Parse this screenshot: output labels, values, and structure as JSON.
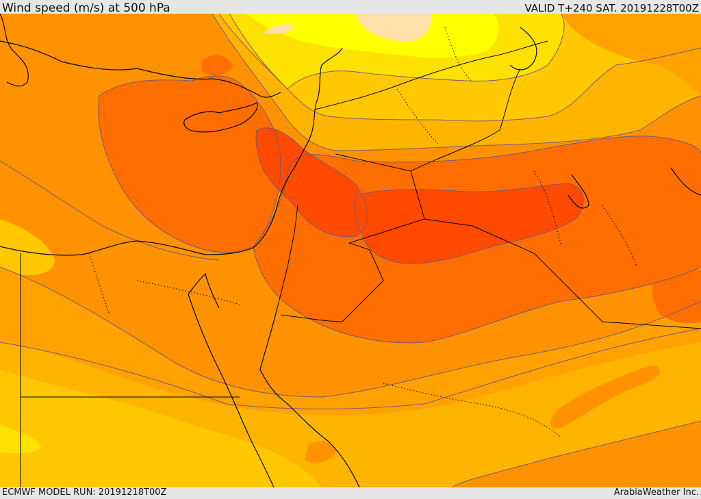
{
  "header": {
    "title": "Wind speed (m/s) at 500 hPa",
    "valid_time": "VALID T+240 SAT. 20191228T00Z"
  },
  "footer": {
    "model_run": "ECMWF MODEL RUN: 20191218T00Z",
    "credit": "ArabiaWeather Inc."
  },
  "map": {
    "colors": {
      "base_orange": "#ff9200",
      "band_amber": "#ffa200",
      "band_gold": "#ffb400",
      "band_yellow_gold": "#ffc800",
      "band_yellow": "#ffe100",
      "band_pale_yellow": "#ffff00",
      "band_peach": "#ffe0a8",
      "band_dark_orange": "#ff6e00",
      "band_red_orange": "#ff4a00",
      "contour_line": "#7a5a7a",
      "coastline": "#000000",
      "border_line": "#000000"
    }
  }
}
